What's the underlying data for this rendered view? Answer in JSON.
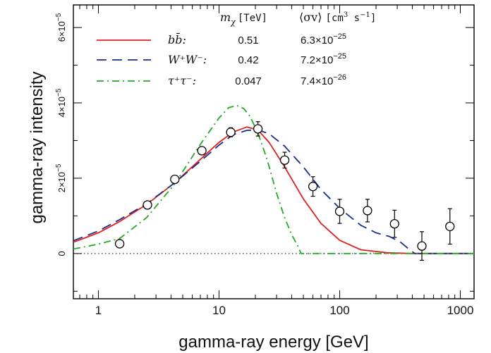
{
  "chart_data": {
    "type": "line",
    "xlabel": "gamma-ray energy [GeV]",
    "ylabel": "gamma-ray intensity",
    "x_scale": "log",
    "xlim": [
      0.62,
      1300
    ],
    "ylim": [
      -1.2e-05,
      6.6e-05
    ],
    "x_ticks": [
      {
        "value": 1,
        "label": "1"
      },
      {
        "value": 10,
        "label": "10"
      },
      {
        "value": 100,
        "label": "100"
      },
      {
        "value": 1000,
        "label": "1000"
      }
    ],
    "y_ticks": [
      {
        "value": 0,
        "mantissa": "0",
        "exp": ""
      },
      {
        "value": 2e-05,
        "mantissa": "2×10",
        "exp": "−5"
      },
      {
        "value": 4e-05,
        "mantissa": "4×10",
        "exp": "−5"
      },
      {
        "value": 6e-05,
        "mantissa": "6×10",
        "exp": "−5"
      }
    ],
    "zero_line": true,
    "legend_header": {
      "mass": "m",
      "mass_sub": "χ",
      "mass_unit": "[TeV]",
      "xsec": "⟨σv⟩",
      "xsec_unit": "[cm",
      "xsec_unit_exp": "3",
      "xsec_unit_rest": " s",
      "xsec_unit_exp2": "−1",
      "xsec_unit_end": "]"
    },
    "series": [
      {
        "name": "bb̄:",
        "mass": "0.51",
        "xsec_mantissa": "6.3×10",
        "xsec_exp": "−25",
        "color": "#dd2222",
        "dash": "",
        "x": [
          0.62,
          1,
          1.5,
          2.5,
          4.3,
          7,
          10,
          13,
          17,
          21,
          26,
          35,
          50,
          70,
          100,
          150,
          250,
          400,
          700,
          1300
        ],
        "y": [
          3e-06,
          5.5e-06,
          8.5e-06,
          1.3e-05,
          1.88e-05,
          2.5e-05,
          2.95e-05,
          3.22e-05,
          3.36e-05,
          3.28e-05,
          2.95e-05,
          2.3e-05,
          1.45e-05,
          8e-06,
          3.5e-06,
          1e-06,
          2e-07,
          0,
          0,
          0
        ]
      },
      {
        "name": "W⁺W⁻:",
        "mass": "0.42",
        "xsec_mantissa": "7.2×10",
        "xsec_exp": "−25",
        "color": "#1a2f8a",
        "dash": "14,8",
        "x": [
          0.62,
          1,
          1.5,
          2.5,
          4.3,
          7,
          10,
          13,
          17,
          21,
          26,
          35,
          50,
          70,
          100,
          150,
          200,
          260,
          320,
          380,
          420,
          500,
          1300
        ],
        "y": [
          3.4e-06,
          6e-06,
          9e-06,
          1.32e-05,
          1.88e-05,
          2.45e-05,
          2.88e-05,
          3.15e-05,
          3.27e-05,
          3.28e-05,
          3.18e-05,
          2.85e-05,
          2.3e-05,
          1.7e-05,
          1.2e-05,
          7.5e-06,
          5.5e-06,
          4.5e-06,
          3e-06,
          1e-06,
          0,
          0,
          0
        ]
      },
      {
        "name": "τ⁺τ⁻:",
        "mass": "0.047",
        "xsec_mantissa": "7.4×10",
        "xsec_exp": "−26",
        "color": "#22aa22",
        "dash": "10,5,2,5",
        "x": [
          0.62,
          1,
          1.5,
          2.5,
          4.3,
          7,
          10,
          12,
          14,
          16,
          18,
          21,
          25,
          30,
          35,
          40,
          45,
          47,
          48,
          100,
          1300
        ],
        "y": [
          1.2e-06,
          2.5e-06,
          4e-06,
          9.5e-06,
          1.85e-05,
          2.9e-05,
          3.6e-05,
          3.87e-05,
          3.93e-05,
          3.85e-05,
          3.65e-05,
          3.2e-05,
          2.5e-05,
          1.6e-05,
          9.5e-06,
          5e-06,
          2e-06,
          6e-07,
          0,
          0,
          0
        ]
      }
    ],
    "points": {
      "x": [
        1.5,
        2.55,
        4.3,
        7.2,
        12.5,
        21,
        35,
        60,
        100,
        170,
        285,
        480,
        820
      ],
      "y": [
        2.6e-06,
        1.29e-05,
        1.97e-05,
        2.73e-05,
        3.22e-05,
        3.31e-05,
        2.48e-05,
        1.78e-05,
        1.12e-05,
        1.14e-05,
        7.9e-06,
        2e-06,
        7.2e-06
      ],
      "err": [
        6e-07,
        8e-07,
        9e-07,
        1e-06,
        1.2e-06,
        1.9e-06,
        2.1e-06,
        2.6e-06,
        3.2e-06,
        3e-06,
        3.6e-06,
        3.8e-06,
        4.7e-06
      ]
    }
  }
}
